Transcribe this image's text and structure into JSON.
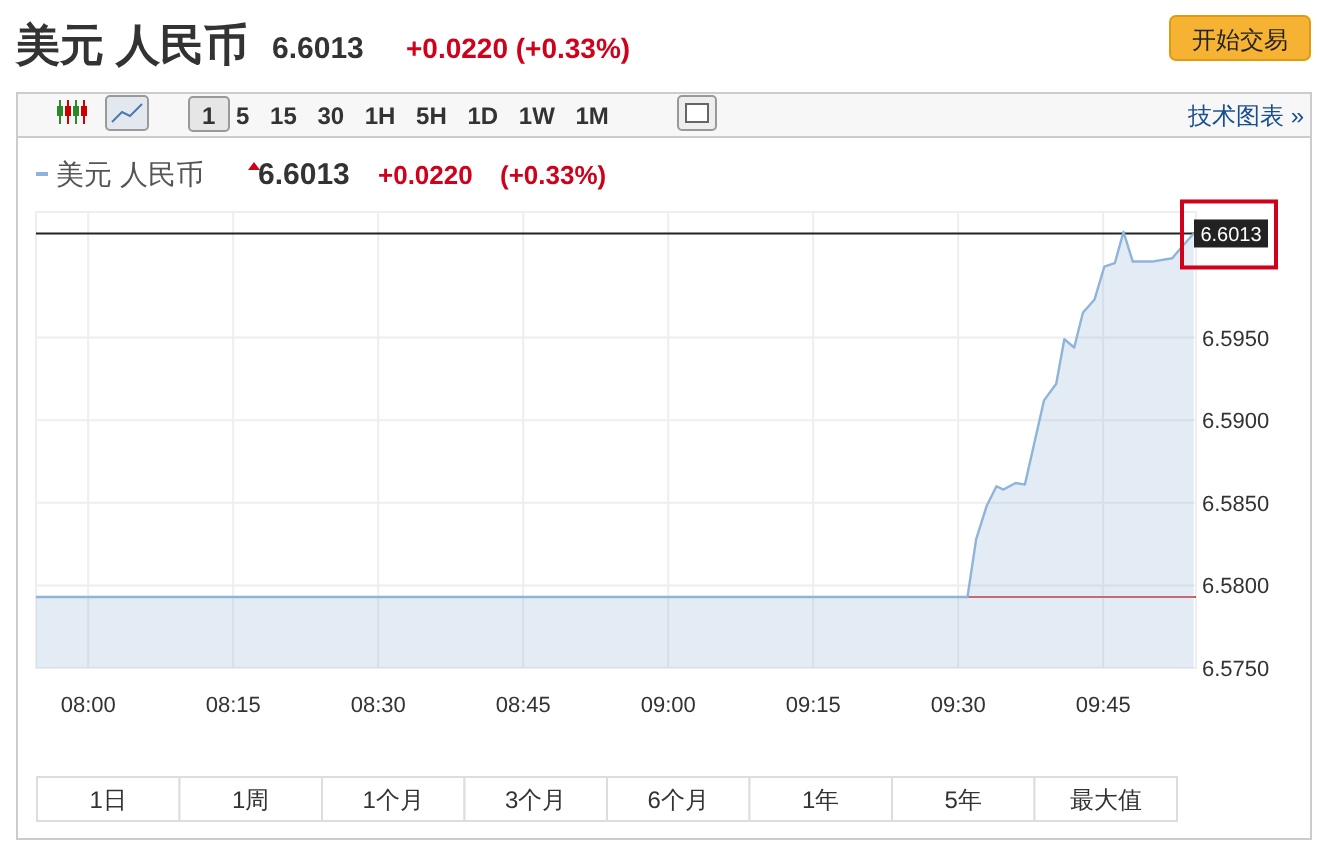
{
  "chart_data": {
    "type": "area",
    "title": "美元 人民币",
    "x": [
      7.91,
      9.516,
      9.531,
      9.549,
      9.566,
      9.578,
      9.599,
      9.615,
      9.648,
      9.669,
      9.683,
      9.7,
      9.715,
      9.735,
      9.752,
      9.77,
      9.785,
      9.801,
      9.834,
      9.869,
      9.881,
      9.906
    ],
    "series": [
      {
        "name": "美元 人民币",
        "color": "#8fb4d9",
        "values": [
          6.5793,
          6.5793,
          6.5828,
          6.5848,
          6.586,
          6.5858,
          6.5862,
          6.5861,
          6.5912,
          6.5922,
          6.5949,
          6.5944,
          6.5965,
          6.5973,
          6.5993,
          6.5995,
          6.6014,
          6.5996,
          6.5996,
          6.5998,
          6.6003,
          6.6013
        ]
      }
    ],
    "xlim": [
      7.91,
      9.91
    ],
    "xticks": [
      {
        "value": 8,
        "label": "08:00"
      },
      {
        "value": 8.25,
        "label": "08:15"
      },
      {
        "value": 8.5,
        "label": "08:30"
      },
      {
        "value": 8.75,
        "label": "08:45"
      },
      {
        "value": 9,
        "label": "09:00"
      },
      {
        "value": 9.25,
        "label": "09:15"
      },
      {
        "value": 9.5,
        "label": "09:30"
      },
      {
        "value": 9.75,
        "label": "09:45"
      }
    ],
    "ylim": [
      6.575,
      6.6026
    ],
    "yticks": [
      {
        "value": 6.575,
        "label": "6.5750"
      },
      {
        "value": 6.58,
        "label": "6.5800"
      },
      {
        "value": 6.585,
        "label": "6.5850"
      },
      {
        "value": 6.59,
        "label": "6.5900"
      },
      {
        "value": 6.595,
        "label": "6.5950"
      }
    ],
    "ref_lines": [
      {
        "axis": "y",
        "value": 6.6013,
        "label": "6.6013",
        "color": "#222222"
      },
      {
        "axis": "y",
        "value": 6.5793,
        "color": "#d9534f"
      }
    ],
    "grid": true,
    "legend": "top left",
    "annotations": [
      "6.6013",
      "+0.0220 (+0.33%)",
      "开始交易",
      "1 5 15 30 1H 5H 1D 1W 1M",
      "技术图表 »",
      "6.6013",
      "+0.0220",
      "(+0.33%)",
      "1日",
      "1周",
      "1个月",
      "3个月",
      "6个月",
      "1年",
      "5年",
      "最大值"
    ]
  }
}
